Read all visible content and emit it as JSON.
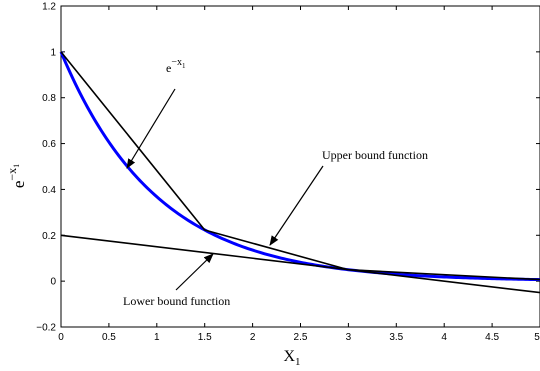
{
  "chart_data": {
    "type": "line",
    "xlabel": "X",
    "xlabel_sub": "1",
    "ylabel": "e",
    "ylabel_sup": "−x",
    "ylabel_sup_sub": "1",
    "xlim": [
      0,
      5
    ],
    "ylim": [
      -0.2,
      1.2
    ],
    "xticks": [
      "0",
      "0.5",
      "1",
      "1.5",
      "2",
      "2.5",
      "3",
      "3.5",
      "4",
      "4.5",
      "5"
    ],
    "yticks": [
      "−0.2",
      "0",
      "0.2",
      "0.4",
      "0.6",
      "0.8",
      "1",
      "1.2"
    ],
    "grid": false,
    "series": [
      {
        "id": "exp-curve",
        "color": "#0000ff",
        "function": "exp(-x)",
        "x": [
          0,
          5
        ]
      },
      {
        "id": "upper-bound",
        "color": "#000000",
        "x": [
          0,
          1.5,
          3,
          5
        ],
        "y": [
          1,
          0.2231,
          0.0498,
          0.0067
        ]
      },
      {
        "id": "lower-bound",
        "color": "#000000",
        "x": [
          0,
          5
        ],
        "y": [
          0.2,
          -0.05
        ]
      }
    ],
    "annotations": [
      {
        "id": "exp-annotation",
        "text": "e",
        "sup": "−x",
        "sup_sub": "1",
        "target": [
          0.7,
          0.4966
        ]
      },
      {
        "id": "upper-annotation",
        "text": "Upper bound function",
        "target": [
          2.2,
          0.2
        ]
      },
      {
        "id": "lower-annotation",
        "text": "Lower bound function",
        "target": [
          1.6,
          0.12
        ]
      }
    ]
  }
}
